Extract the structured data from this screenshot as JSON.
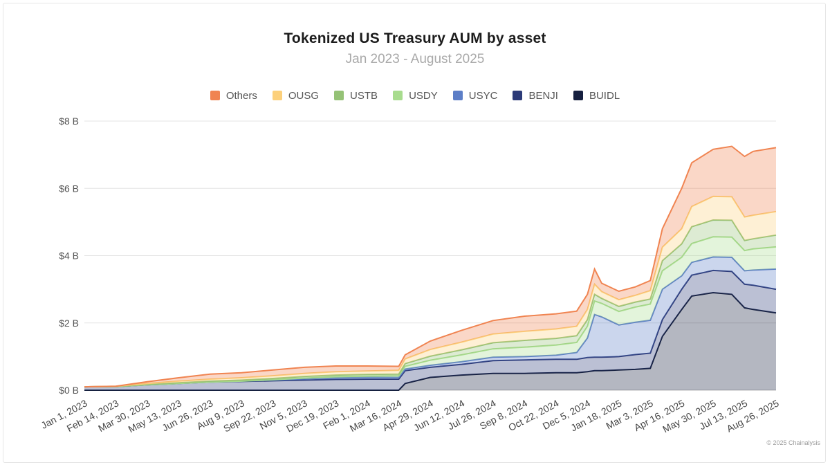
{
  "title": "Tokenized US Treasury AUM by asset",
  "subtitle": "Jan 2023 - August 2025",
  "credit": "© 2025 Chainalysis",
  "legend": [
    {
      "label": "Others",
      "color": "#f08451"
    },
    {
      "label": "OUSG",
      "color": "#fcd07b"
    },
    {
      "label": "USTB",
      "color": "#95c276"
    },
    {
      "label": "USDY",
      "color": "#a8dc8e"
    },
    {
      "label": "USYC",
      "color": "#5c7ec7"
    },
    {
      "label": "BENJI",
      "color": "#2c3a78"
    },
    {
      "label": "BUIDL",
      "color": "#16203f"
    }
  ],
  "chart_data": {
    "type": "area",
    "stacked": true,
    "y_tick_labels": [
      "$0 B",
      "$2 B",
      "$4 B",
      "$6 B",
      "$8 B"
    ],
    "ylim": [
      0,
      8
    ],
    "y_unit": "B USD",
    "grid": true,
    "legend_position": "top-center",
    "x_tick_labels": [
      "Jan 1, 2023",
      "Feb 14, 2023",
      "Mar 30, 2023",
      "May 13, 2023",
      "Jun 26, 2023",
      "Aug 9, 2023",
      "Sep 22, 2023",
      "Nov 5, 2023",
      "Dec 19, 2023",
      "Feb 1, 2024",
      "Mar 16, 2024",
      "Apr 29, 2024",
      "Jun 12, 2024",
      "Jul 26, 2024",
      "Sep 8, 2024",
      "Oct 22, 2024",
      "Dec 5, 2024",
      "Jan 18, 2025",
      "Mar 3, 2025",
      "Apr 16, 2025",
      "May 30, 2025",
      "Jul 13, 2025",
      "Aug 26, 2025"
    ],
    "x": [
      "2023-01-01",
      "2023-02-14",
      "2023-03-30",
      "2023-05-13",
      "2023-06-26",
      "2023-08-09",
      "2023-09-22",
      "2023-11-05",
      "2023-12-19",
      "2024-02-01",
      "2024-03-16",
      "2024-03-25",
      "2024-04-29",
      "2024-06-12",
      "2024-07-26",
      "2024-09-08",
      "2024-10-22",
      "2024-11-20",
      "2024-12-05",
      "2024-12-15",
      "2024-12-25",
      "2025-01-18",
      "2025-02-10",
      "2025-03-03",
      "2025-03-20",
      "2025-04-16",
      "2025-04-30",
      "2025-05-30",
      "2025-06-25",
      "2025-07-13",
      "2025-07-25",
      "2025-08-26"
    ],
    "series": [
      {
        "name": "BUIDL",
        "values": [
          0,
          0,
          0,
          0,
          0,
          0,
          0,
          0,
          0,
          0,
          0,
          0.2,
          0.38,
          0.45,
          0.5,
          0.5,
          0.52,
          0.52,
          0.55,
          0.58,
          0.58,
          0.6,
          0.62,
          0.65,
          1.6,
          2.4,
          2.8,
          2.9,
          2.85,
          2.45,
          2.4,
          2.3
        ]
      },
      {
        "name": "BENJI",
        "values": [
          0.1,
          0.11,
          0.16,
          0.2,
          0.24,
          0.26,
          0.28,
          0.3,
          0.32,
          0.33,
          0.33,
          0.38,
          0.3,
          0.32,
          0.38,
          0.4,
          0.4,
          0.4,
          0.42,
          0.4,
          0.4,
          0.4,
          0.44,
          0.45,
          0.5,
          0.6,
          0.62,
          0.66,
          0.68,
          0.7,
          0.72,
          0.7
        ]
      },
      {
        "name": "USYC",
        "values": [
          0,
          0,
          0,
          0,
          0,
          0.01,
          0.02,
          0.04,
          0.05,
          0.05,
          0.05,
          0.05,
          0.06,
          0.08,
          0.1,
          0.1,
          0.12,
          0.2,
          0.58,
          1.27,
          1.2,
          0.94,
          0.96,
          0.98,
          0.9,
          0.4,
          0.38,
          0.4,
          0.42,
          0.4,
          0.45,
          0.6
        ]
      },
      {
        "name": "USDY",
        "values": [
          0,
          0,
          0,
          0,
          0,
          0,
          0.01,
          0.02,
          0.03,
          0.04,
          0.05,
          0.08,
          0.15,
          0.2,
          0.25,
          0.28,
          0.3,
          0.3,
          0.35,
          0.4,
          0.4,
          0.4,
          0.45,
          0.48,
          0.55,
          0.55,
          0.56,
          0.6,
          0.6,
          0.6,
          0.63,
          0.66
        ]
      },
      {
        "name": "USTB",
        "values": [
          0,
          0,
          0.01,
          0.02,
          0.03,
          0.03,
          0.04,
          0.05,
          0.05,
          0.05,
          0.05,
          0.08,
          0.12,
          0.15,
          0.18,
          0.2,
          0.2,
          0.2,
          0.2,
          0.2,
          0.15,
          0.15,
          0.15,
          0.15,
          0.3,
          0.4,
          0.5,
          0.5,
          0.5,
          0.3,
          0.3,
          0.35
        ]
      },
      {
        "name": "OUSG",
        "values": [
          0,
          0.01,
          0.03,
          0.05,
          0.06,
          0.07,
          0.08,
          0.09,
          0.1,
          0.1,
          0.11,
          0.14,
          0.2,
          0.23,
          0.26,
          0.27,
          0.28,
          0.28,
          0.3,
          0.3,
          0.2,
          0.2,
          0.2,
          0.25,
          0.4,
          0.45,
          0.6,
          0.7,
          0.7,
          0.7,
          0.7,
          0.7
        ]
      },
      {
        "name": "Others",
        "values": [
          0,
          0,
          0.05,
          0.1,
          0.15,
          0.15,
          0.17,
          0.18,
          0.17,
          0.15,
          0.12,
          0.12,
          0.25,
          0.35,
          0.4,
          0.45,
          0.45,
          0.45,
          0.45,
          0.45,
          0.25,
          0.25,
          0.25,
          0.3,
          0.55,
          1.2,
          1.3,
          1.4,
          1.5,
          1.8,
          1.9,
          1.9
        ]
      }
    ]
  }
}
